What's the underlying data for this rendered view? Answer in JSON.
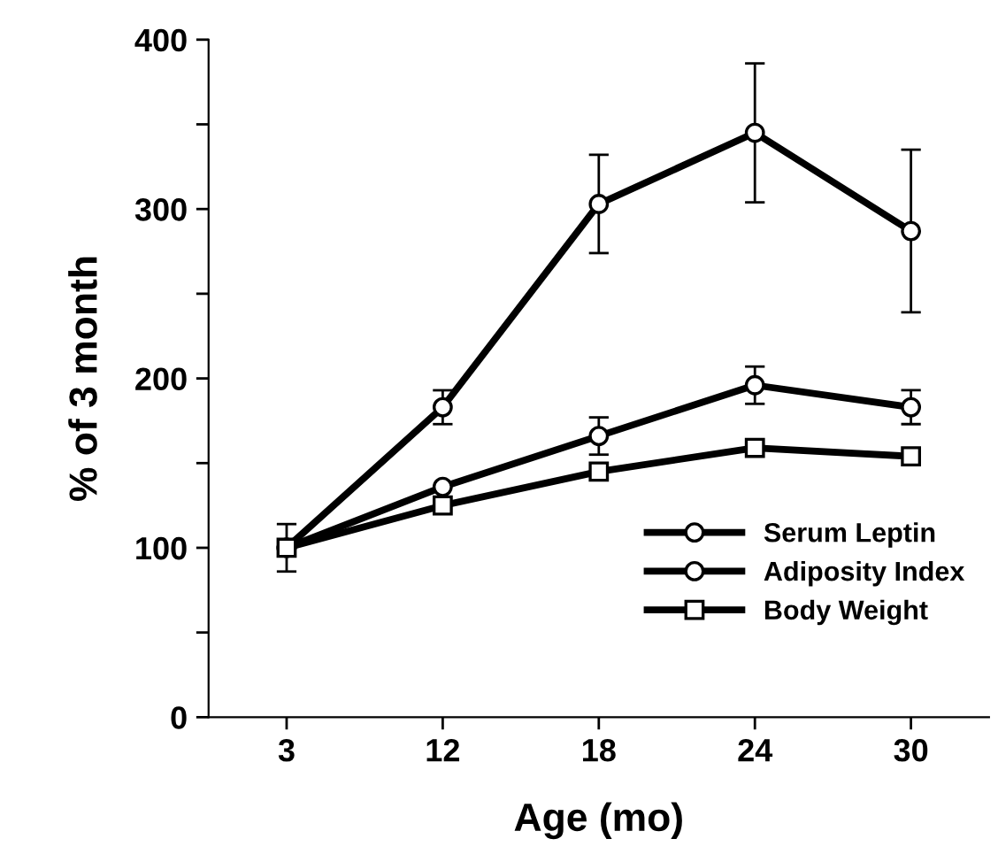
{
  "chart_data": {
    "type": "line",
    "xlabel": "Age (mo)",
    "ylabel": "% of 3 month",
    "categories": [
      "3",
      "12",
      "18",
      "24",
      "30"
    ],
    "ylim": [
      0,
      400
    ],
    "yticks": [
      0,
      {
        "value": 50,
        "label": null
      },
      100,
      {
        "value": 150,
        "label": null
      },
      200,
      {
        "value": 250,
        "label": null
      },
      300,
      {
        "value": 350,
        "label": null
      },
      400
    ],
    "series": [
      {
        "name": "Serum Leptin",
        "color": "#000000",
        "marker": "circle",
        "values": [
          100,
          183,
          303,
          345,
          287
        ],
        "errors": [
          14,
          10,
          29,
          41,
          48
        ]
      },
      {
        "name": "Adiposity Index",
        "color": "#000000",
        "marker": "circle",
        "values": [
          100,
          136,
          166,
          196,
          183
        ],
        "errors": [
          null,
          null,
          11,
          11,
          10
        ]
      },
      {
        "name": "Body Weight",
        "color": "#000000",
        "marker": "square",
        "values": [
          100,
          125,
          145,
          159,
          154
        ]
      }
    ],
    "legend": "bottom right",
    "grid": false
  }
}
